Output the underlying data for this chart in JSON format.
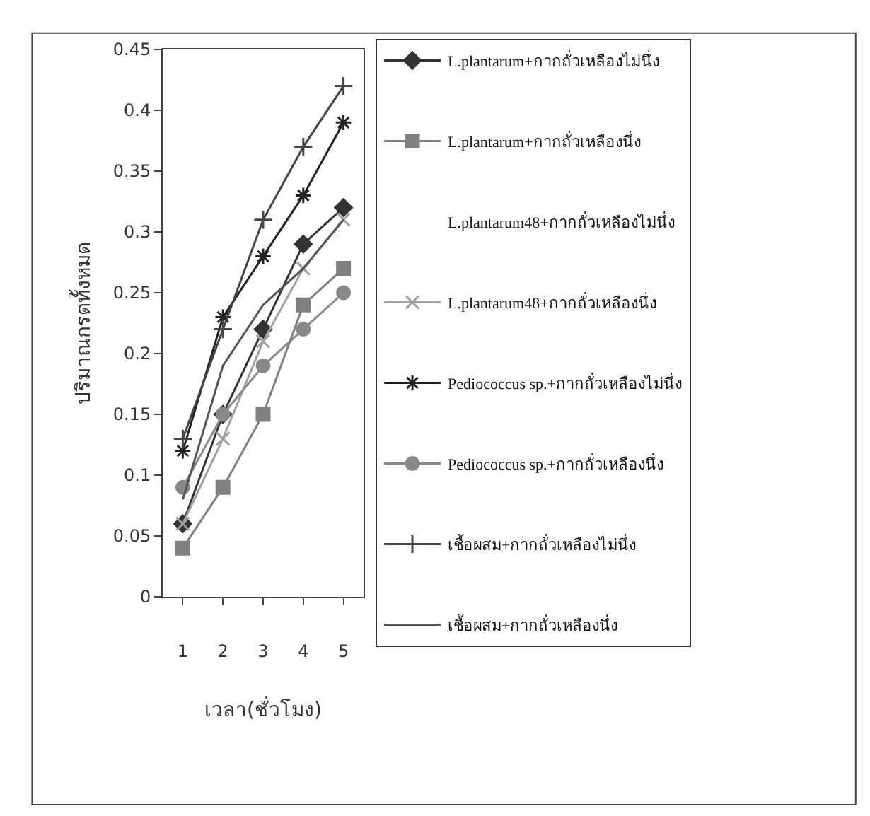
{
  "chart_data": {
    "type": "line",
    "xlabel": "เวลา(ชั่วโมง)",
    "ylabel": "ปริมาณกรดทั้งหมด",
    "categories": [
      "1",
      "2",
      "3",
      "4",
      "5"
    ],
    "ylim": [
      0,
      0.45
    ],
    "yticks": [
      0,
      0.05,
      0.1,
      0.15,
      0.2,
      0.25,
      0.3,
      0.35,
      0.4,
      0.45
    ],
    "legend": "right",
    "series": [
      {
        "name": "L.plantarum+กากถั่วเหลืองไม่นึ่ง",
        "color": "#333333",
        "marker": "diamond",
        "values": [
          0.06,
          0.15,
          0.22,
          0.29,
          0.32
        ]
      },
      {
        "name": "L.plantarum+กากถั่วเหลืองนึ่ง",
        "color": "#808080",
        "marker": "square",
        "values": [
          0.04,
          0.09,
          0.15,
          0.24,
          0.27
        ]
      },
      {
        "name": "L.plantarum48+กากถั่วเหลืองไม่นึ่ง",
        "marker": "none",
        "values": [
          null,
          null,
          null,
          null,
          null
        ]
      },
      {
        "name": "L.plantarum48+กากถั่วเหลืองนึ่ง",
        "color": "#a0a0a0",
        "marker": "cross",
        "values": [
          0.06,
          0.13,
          0.21,
          0.27,
          0.31
        ]
      },
      {
        "name": "Pediococcus sp.+กากถั่วเหลืองไม่นึ่ง",
        "color": "#222222",
        "marker": "cross",
        "values": [
          0.12,
          0.23,
          0.28,
          0.33,
          0.39
        ]
      },
      {
        "name": "Pediococcus sp.+กากถั่วเหลืองนึ่ง",
        "color": "#888888",
        "marker": "circle",
        "values": [
          0.09,
          0.15,
          0.19,
          0.22,
          0.25
        ]
      },
      {
        "name": "เชื้อผสม+กากถั่วเหลืองไม่นึ่ง",
        "color": "#444444",
        "marker": "cross",
        "values": [
          0.13,
          0.22,
          0.31,
          0.37,
          0.42
        ]
      },
      {
        "name": "เชื้อผสม+กากถั่วเหลืองนึ่ง",
        "color": "#555555",
        "marker": "none",
        "values": [
          0.08,
          0.19,
          0.24,
          0.27,
          0.31
        ]
      }
    ]
  }
}
